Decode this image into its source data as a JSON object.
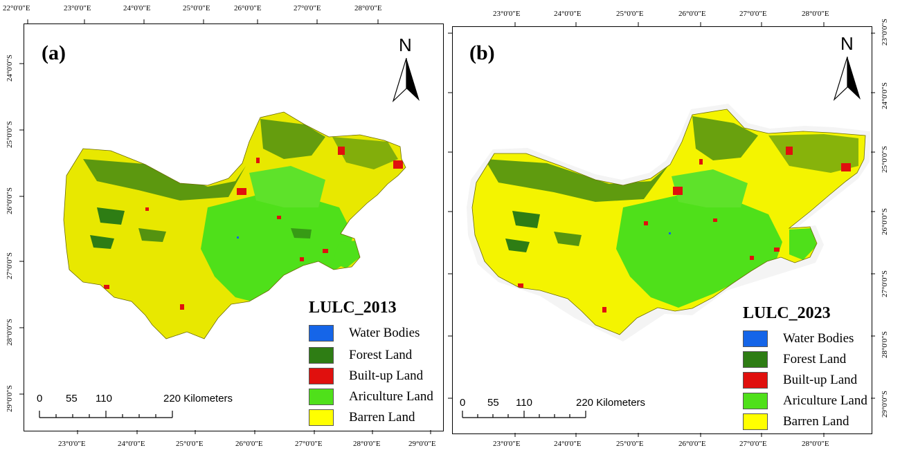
{
  "map_a": {
    "panel_label": "(a)",
    "north_label": "N",
    "top_ticks": [
      "22°0'0\"E",
      "23°0'0\"E",
      "24°0'0\"E",
      "25°0'0\"E",
      "26°0'0\"E",
      "27°0'0\"E",
      "28°0'0\"E"
    ],
    "bottom_ticks": [
      "23°0'0\"E",
      "24°0'0\"E",
      "25°0'0\"E",
      "26°0'0\"E",
      "27°0'0\"E",
      "28°0'0\"E",
      "29°0'0\"E"
    ],
    "left_ticks": [
      "24°0'0\"S",
      "25°0'0\"S",
      "26°0'0\"S",
      "27°0'0\"S",
      "28°0'0\"S",
      "29°0'0\"S"
    ],
    "legend": {
      "title": "LULC_2013",
      "items": [
        {
          "label": "Water Bodies",
          "color": "#1565e8"
        },
        {
          "label": "Forest Land",
          "color": "#2e7d14"
        },
        {
          "label": "Built-up Land",
          "color": "#e0100e"
        },
        {
          "label": "Ariculture Land",
          "color": "#4fe01a"
        },
        {
          "label": "Barren Land",
          "color": "#ffff00"
        }
      ]
    },
    "scale": {
      "labels": [
        "0",
        "55",
        "110",
        "220 Kilometers"
      ]
    }
  },
  "map_b": {
    "panel_label": "(b)",
    "north_label": "N",
    "top_ticks": [
      "23°0'0\"E",
      "24°0'0\"E",
      "25°0'0\"E",
      "26°0'0\"E",
      "27°0'0\"E",
      "28°0'0\"E"
    ],
    "bottom_ticks": [
      "23°0'0\"E",
      "24°0'0\"E",
      "25°0'0\"E",
      "26°0'0\"E",
      "27°0'0\"E",
      "28°0'0\"E"
    ],
    "right_ticks": [
      "23°0'0\"S",
      "24°0'0\"S",
      "25°0'0\"S",
      "26°0'0\"S",
      "27°0'0\"S",
      "28°0'0\"S",
      "29°0'0\"S"
    ],
    "legend": {
      "title": "LULC_2023",
      "items": [
        {
          "label": "Water Bodies",
          "color": "#1565e8"
        },
        {
          "label": "Forest Land",
          "color": "#2e7d14"
        },
        {
          "label": "Built-up Land",
          "color": "#e0100e"
        },
        {
          "label": "Ariculture Land",
          "color": "#4fe01a"
        },
        {
          "label": "Barren Land",
          "color": "#ffff00"
        }
      ]
    },
    "scale": {
      "labels": [
        "0",
        "55",
        "110",
        "220 Kilometers"
      ]
    }
  }
}
